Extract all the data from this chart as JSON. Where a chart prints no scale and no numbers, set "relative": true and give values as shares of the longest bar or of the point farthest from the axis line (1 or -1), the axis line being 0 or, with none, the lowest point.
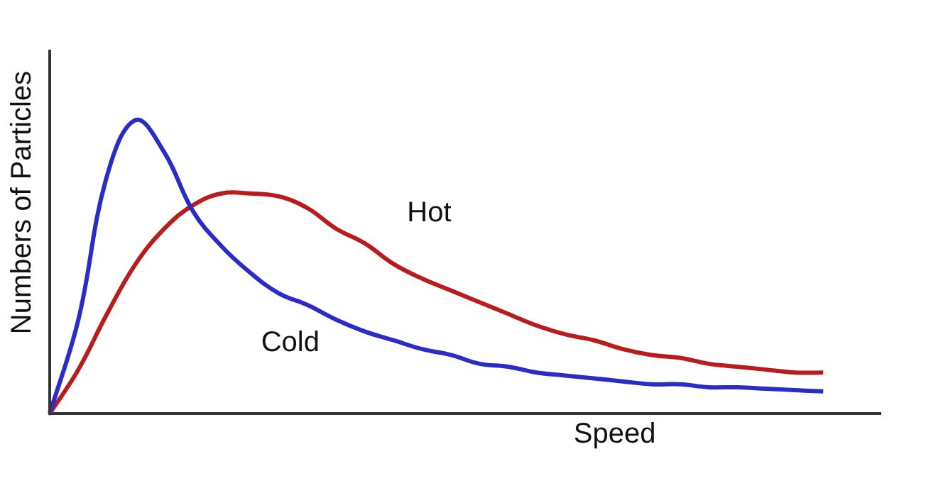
{
  "chart_data": {
    "type": "line",
    "relative": true,
    "xlabel": "Speed",
    "ylabel": "Numbers of Particles",
    "legend": false,
    "grid": false,
    "marker": "none",
    "line_style": "solid",
    "categories": [
      null,
      null,
      null,
      null,
      null,
      null,
      null,
      null,
      null,
      null,
      null,
      null,
      null,
      null,
      null,
      null,
      null,
      null,
      null,
      null,
      null,
      null,
      null,
      null,
      null,
      null,
      null,
      null,
      null,
      null
    ],
    "series": [
      {
        "name": "Cold",
        "color": "#2b2bc8",
        "values": [
          0,
          0.32,
          0.81,
          1,
          0.89,
          0.69,
          0.57,
          0.48,
          0.41,
          0.37,
          0.32,
          0.28,
          0.25,
          0.22,
          0.2,
          0.17,
          0.16,
          0.14,
          0.13,
          0.12,
          0.11,
          0.1,
          0.1,
          0.09,
          0.09,
          0.085,
          0.08,
          0.076,
          null,
          null
        ]
      },
      {
        "name": "Hot",
        "color": "#b81c1c",
        "values": [
          0,
          0.15,
          0.34,
          0.51,
          0.63,
          0.71,
          0.75,
          0.75,
          0.74,
          0.7,
          0.63,
          0.58,
          0.51,
          0.46,
          0.42,
          0.38,
          0.34,
          0.3,
          0.27,
          0.25,
          0.22,
          0.2,
          0.19,
          0.17,
          0.16,
          0.15,
          0.14,
          0.14,
          null,
          null
        ]
      }
    ]
  }
}
